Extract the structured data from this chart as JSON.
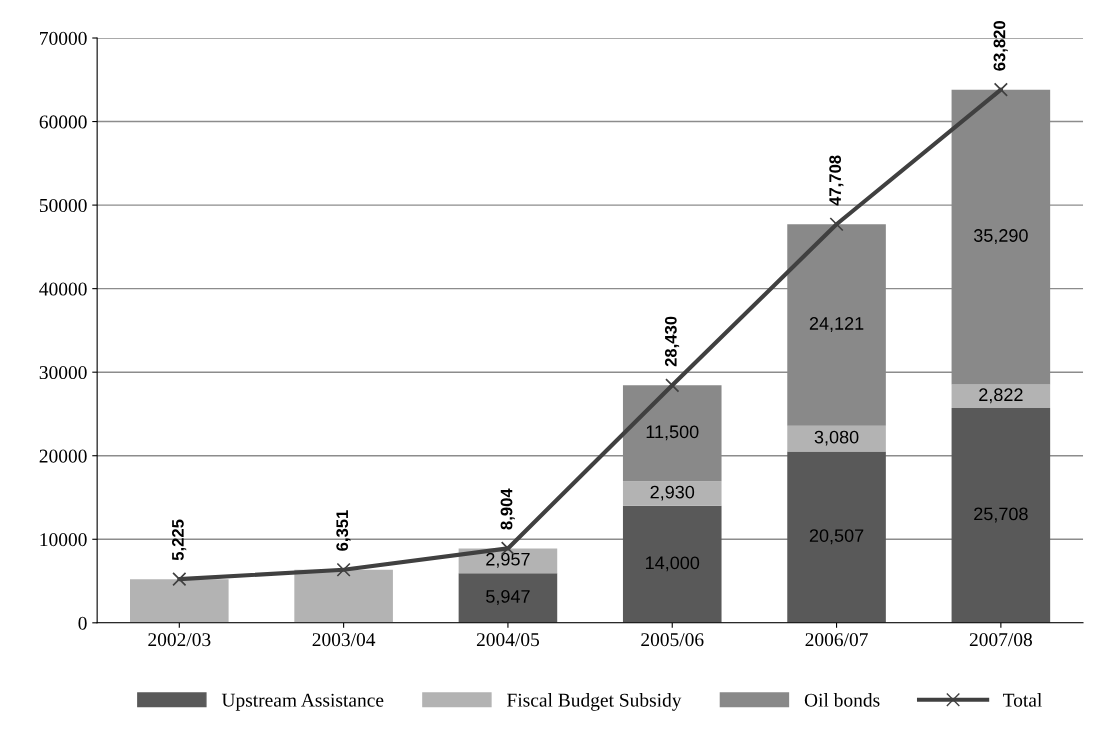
{
  "chart_data": {
    "type": "bar",
    "stacked": true,
    "categories": [
      "2002/03",
      "2003/04",
      "2004/05",
      "2005/06",
      "2006/07",
      "2007/08"
    ],
    "series": [
      {
        "name": "Upstream Assistance",
        "color": "#595959",
        "values": [
          null,
          null,
          5947,
          14000,
          20507,
          25708
        ],
        "value_labels": [
          null,
          null,
          "5,947",
          "14,000",
          "20,507",
          "25,708"
        ]
      },
      {
        "name": "Fiscal Budget Subsidy",
        "color": "#b3b3b3",
        "values": [
          5225,
          6351,
          2957,
          2930,
          3080,
          2822
        ],
        "value_labels": [
          null,
          null,
          "2,957",
          "2,930",
          "3,080",
          "2,822"
        ]
      },
      {
        "name": "Oil bonds",
        "color": "#898989",
        "values": [
          null,
          null,
          null,
          11500,
          24121,
          35290
        ],
        "value_labels": [
          null,
          null,
          null,
          "11,500",
          "24,121",
          "35,290"
        ]
      },
      {
        "name": "Total",
        "type": "line",
        "color": "#404040",
        "marker": "cross",
        "values": [
          5225,
          6351,
          8904,
          28430,
          47708,
          63820
        ],
        "value_labels": [
          "5,225",
          "6,351",
          "8,904",
          "28,430",
          "47,708",
          "63,820"
        ]
      }
    ],
    "ylim": [
      0,
      70000
    ],
    "yticks": [
      0,
      10000,
      20000,
      30000,
      40000,
      50000,
      60000,
      70000
    ],
    "grid": "y",
    "legend": "bottom"
  }
}
